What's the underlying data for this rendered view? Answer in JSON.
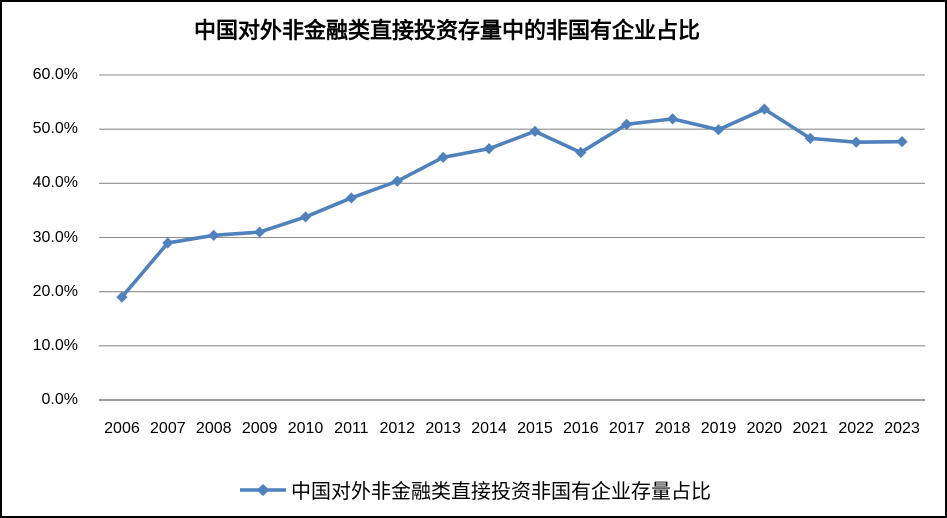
{
  "frame": {
    "background_color": "#FFFFFF",
    "border_color": "#000000"
  },
  "chart_data": {
    "type": "line",
    "title": "中国对外非金融类直接投资存量中的非国有企业占比",
    "categories": [
      "2006",
      "2007",
      "2008",
      "2009",
      "2010",
      "2011",
      "2012",
      "2013",
      "2014",
      "2015",
      "2016",
      "2017",
      "2018",
      "2019",
      "2020",
      "2021",
      "2022",
      "2023"
    ],
    "series": [
      {
        "name": "中国对外非金融类直接投资非国有企业存量占比",
        "values": [
          19.0,
          29.0,
          30.4,
          31.0,
          33.8,
          37.3,
          40.4,
          44.8,
          46.4,
          49.6,
          45.7,
          50.9,
          51.9,
          49.9,
          53.7,
          48.3,
          47.6,
          47.7
        ],
        "unit": "%",
        "color": "#4F81BD",
        "marker": "diamond"
      }
    ],
    "xlabel": "",
    "ylabel": "",
    "ylim": [
      0,
      60
    ],
    "ytick_step": 10,
    "ytick_labels": [
      "0.0%",
      "10.0%",
      "20.0%",
      "30.0%",
      "40.0%",
      "50.0%",
      "60.0%"
    ],
    "grid": "horizontal",
    "gridline_color": "#8E8E8E",
    "axis_color": "#7F7F7F",
    "legend_position": "bottom",
    "legend_label": "中国对外非金融类直接投资非国有企业存量占比"
  }
}
